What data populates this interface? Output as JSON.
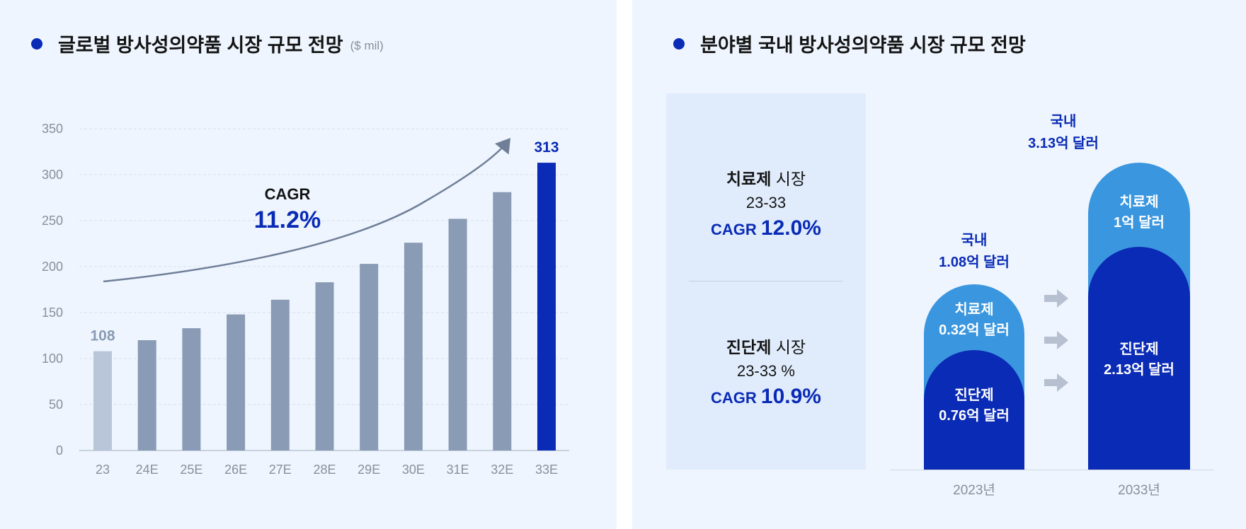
{
  "left": {
    "title": "글로벌 방사성의약품 시장 규모 전망",
    "unit": "($ mil)",
    "cagr_label": "CAGR",
    "cagr_value": "11.2%"
  },
  "chart_data": {
    "type": "bar",
    "title": "글로벌 방사성의약품 시장 규모 전망",
    "ylabel": "($ mil)",
    "categories": [
      "23",
      "24E",
      "25E",
      "26E",
      "27E",
      "28E",
      "29E",
      "30E",
      "31E",
      "32E",
      "33E"
    ],
    "values": [
      108,
      120,
      133,
      148,
      164,
      183,
      203,
      226,
      252,
      281,
      313
    ],
    "data_labels": {
      "0": "108",
      "10": "313"
    },
    "yticks": [
      "0",
      "50",
      "100",
      "150",
      "200",
      "250",
      "300",
      "350"
    ],
    "ylim": [
      0,
      350
    ],
    "grid": true,
    "colors": {
      "first": "#b9c6d9",
      "middle": "#8a9bb5",
      "last": "#0a2bb5",
      "arrow": "#6f7f98"
    }
  },
  "right": {
    "title": "분야별 국내 방사성의약품 시장 규모 전망",
    "therapy": {
      "name": "치료제",
      "suffix": " 시장",
      "range": "23-33",
      "cagr_label": "CAGR ",
      "cagr_value": "12.0%"
    },
    "diagnostic": {
      "name": "진단제",
      "suffix": " 시장",
      "range": "23-33 %",
      "cagr_label": "CAGR ",
      "cagr_value": "10.9%"
    },
    "years": [
      {
        "year": "2023년",
        "total_label": "국내",
        "total_value": "1.08억 달러",
        "therapy_label": "치료제",
        "therapy_value": "0.32억 달러",
        "diag_label": "진단제",
        "diag_value": "0.76억 달러"
      },
      {
        "year": "2033년",
        "total_label": "국내",
        "total_value": "3.13억 달러",
        "therapy_label": "치료제",
        "therapy_value": "1억 달러",
        "diag_label": "진단제",
        "diag_value": "2.13억 달러"
      }
    ],
    "colors": {
      "therapy": "#3a96de",
      "diagnostic": "#0a2bb5"
    }
  }
}
